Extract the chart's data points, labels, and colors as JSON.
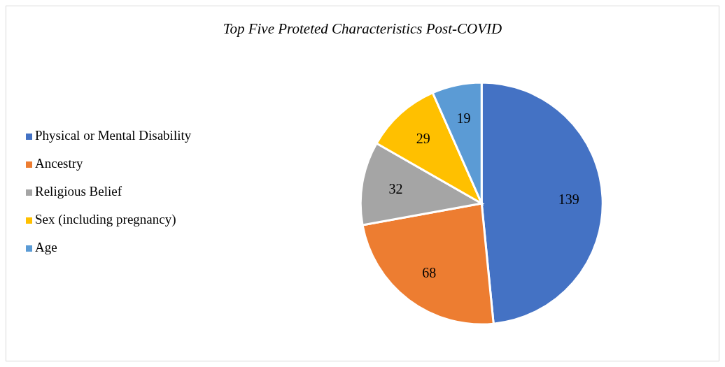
{
  "chart_data": {
    "type": "pie",
    "title": "Top Five Proteted Characteristics Post-COVID",
    "categories": [
      "Physical or Mental Disability",
      "Ancestry",
      "Religious Belief",
      "Sex (including pregnancy)",
      "Age"
    ],
    "values": [
      139,
      68,
      32,
      29,
      19
    ],
    "colors": [
      "#4472c4",
      "#ed7d31",
      "#a5a5a5",
      "#ffc000",
      "#5b9bd5"
    ],
    "data_labels": true,
    "legend": "left"
  }
}
